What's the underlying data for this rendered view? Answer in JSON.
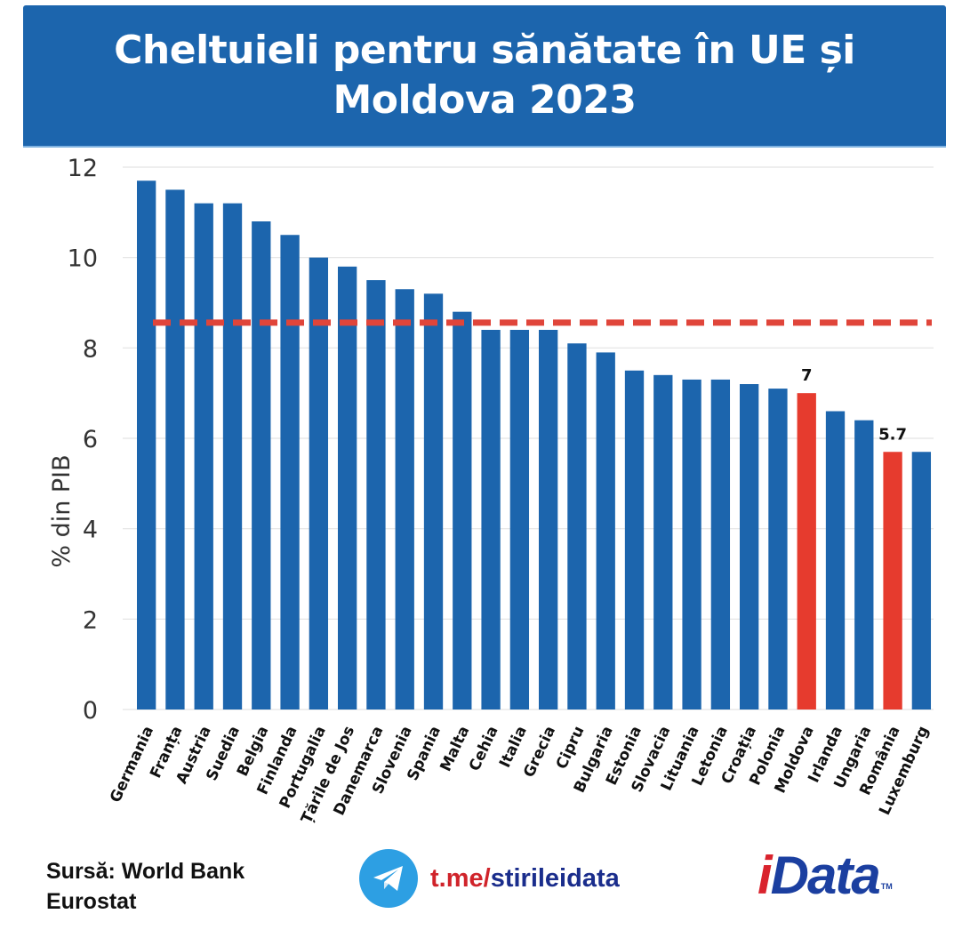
{
  "header": {
    "title_line1": "Cheltuieli pentru sănătate în UE și",
    "title_line2": "Moldova 2023"
  },
  "colors": {
    "banner": "#1c65ad",
    "bar_default": "#1c65ad",
    "bar_highlight": "#e63b2e",
    "reference_line": "#e0453a",
    "grid": "#e3e3e3"
  },
  "chart_data": {
    "type": "bar",
    "title": "Cheltuieli pentru sănătate în UE și Moldova 2023",
    "xlabel": "",
    "ylabel": "% din PIB",
    "ylim": [
      0,
      12
    ],
    "yticks": [
      0,
      2,
      4,
      6,
      8,
      10,
      12
    ],
    "grid": true,
    "categories": [
      "Germania",
      "Franța",
      "Austria",
      "Suedia",
      "Belgia",
      "Finlanda",
      "Portugalia",
      "Țările de Jos",
      "Danemarca",
      "Slovenia",
      "Spania",
      "Malta",
      "Cehia",
      "Italia",
      "Grecia",
      "Cipru",
      "Bulgaria",
      "Estonia",
      "Slovacia",
      "Lituania",
      "Letonia",
      "Croația",
      "Polonia",
      "Moldova",
      "Irlanda",
      "Ungaria",
      "România",
      "Luxemburg"
    ],
    "values": [
      11.7,
      11.5,
      11.2,
      11.2,
      10.8,
      10.5,
      10.0,
      9.8,
      9.5,
      9.3,
      9.2,
      8.8,
      8.4,
      8.4,
      8.4,
      8.1,
      7.9,
      7.5,
      7.4,
      7.3,
      7.3,
      7.2,
      7.1,
      7.0,
      6.6,
      6.4,
      5.7,
      5.7
    ],
    "highlighted": [
      "Moldova",
      "România"
    ],
    "data_labels": [
      {
        "category": "Moldova",
        "text": "7"
      },
      {
        "category": "România",
        "text": "5.7"
      }
    ],
    "reference_line": {
      "value": 8.56,
      "style": "dashed",
      "label": ""
    }
  },
  "footer": {
    "source_line1": "Sursă: World Bank",
    "source_line2": "Eurostat",
    "telegram_icon": "telegram-plane-icon",
    "telegram_part1": "t.me/",
    "telegram_part2": "stirileidata",
    "logo_i": "i",
    "logo_rest": "Data",
    "logo_tm": "TM"
  }
}
